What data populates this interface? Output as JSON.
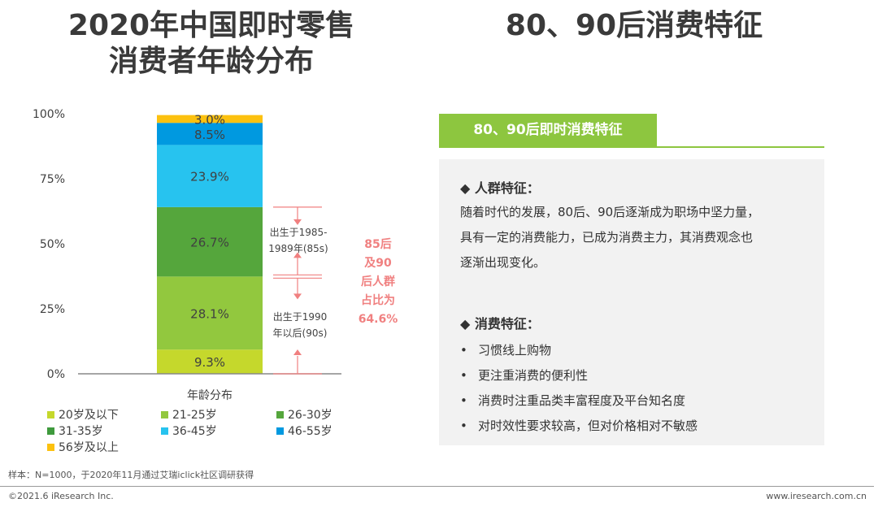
{
  "left_title": {
    "line1": "2020年中国即时零售",
    "line2": "消费者年龄分布"
  },
  "right_title": "80、90后消费特征",
  "chart_data": {
    "type": "bar",
    "stacked": true,
    "categories": [
      "年龄分布"
    ],
    "series": [
      {
        "name": "20岁及以下",
        "values": [
          9.3
        ],
        "color": "#c5d82c"
      },
      {
        "name": "21-25岁",
        "values": [
          28.1
        ],
        "color": "#92c83e"
      },
      {
        "name": "26-30岁",
        "values": [
          26.7
        ],
        "color": "#55a63c"
      },
      {
        "name": "31-35岁",
        "values": [
          0
        ],
        "color": "#3f9a3d"
      },
      {
        "name": "36-45岁",
        "values": [
          23.9
        ],
        "color": "#27c3ef"
      },
      {
        "name": "46-55岁",
        "values": [
          8.5
        ],
        "color": "#0099e0"
      },
      {
        "name": "56岁及以上",
        "values": [
          3.0
        ],
        "color": "#fcc10f"
      }
    ],
    "segment_labels": [
      "9.3%",
      "28.1%",
      "26.7%",
      "23.9%",
      "8.5%",
      "3.0%"
    ],
    "yticks": [
      "0%",
      "25%",
      "50%",
      "75%",
      "100%"
    ],
    "ylim": [
      0,
      100
    ],
    "xlabel": "年龄分布"
  },
  "annotations": {
    "bracket_85s": {
      "line1": "出生于1985-",
      "line2": "1989年(85s)"
    },
    "bracket_90s": {
      "line1": "出生于1990",
      "line2": "年以后(90s)"
    },
    "share": [
      "85后",
      "及90",
      "后人群",
      "占比为",
      "64.6%"
    ]
  },
  "panel": {
    "header": "80、90后即时消费特征",
    "crowd_title": "◆ 人群特征：",
    "crowd_lines": [
      "随着时代的发展，80后、90后逐渐成为职场中坚力量，",
      "具有一定的消费能力，已成为消费主力，其消费观念也",
      "逐渐出现变化。"
    ],
    "consume_title": "◆ 消费特征：",
    "bullet_symbol": "•",
    "bullets": [
      "习惯线上购物",
      "更注重消费的便利性",
      "消费时注重品类丰富程度及平台知名度",
      "对时效性要求较高，但对价格相对不敏感"
    ]
  },
  "footer": {
    "sample": "样本：N=1000，于2020年11月通过艾瑞iclick社区调研获得",
    "copyright": "©2021.6 iResearch Inc.",
    "website": "www.iresearch.com.cn"
  }
}
